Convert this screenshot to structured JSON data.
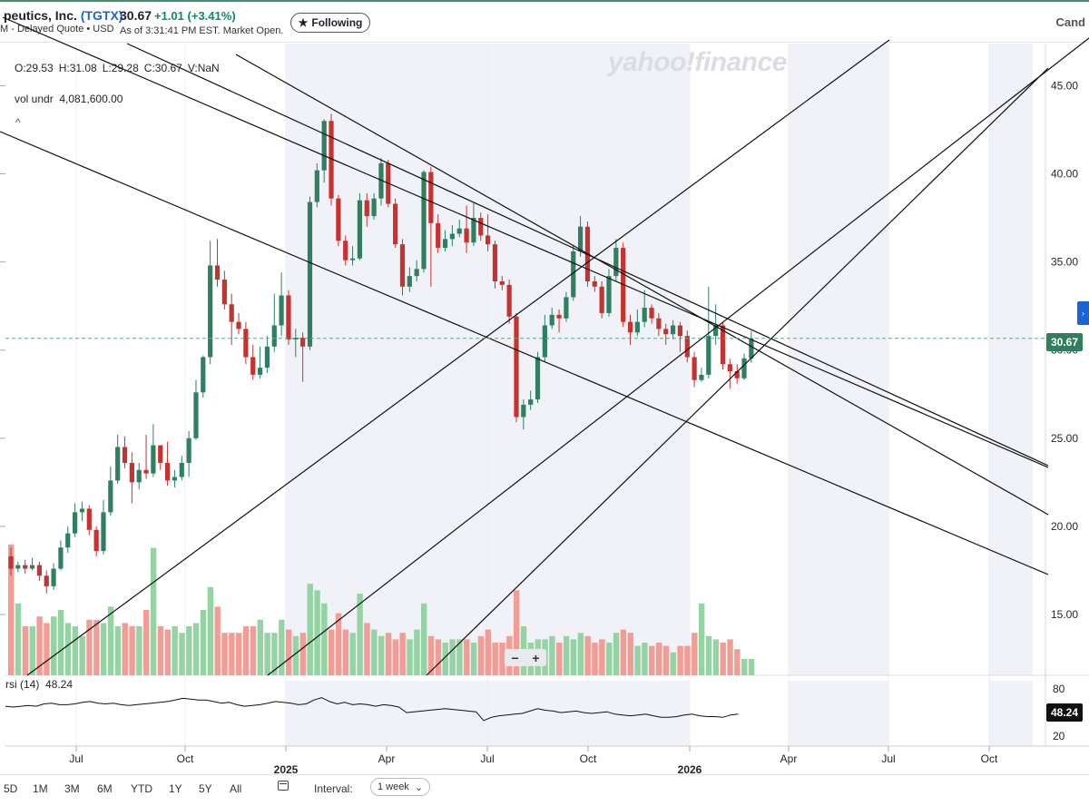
{
  "header": {
    "company": "peutics, Inc.",
    "ticker": "(TGTX)",
    "subline": "M - Delayed Quote • USD",
    "price": "30.67",
    "change": "+1.01",
    "change_pct": "(+3.41%)",
    "as_of": "As of 3:31:41 PM EST. Market Open.",
    "follow_label": "Following",
    "follow_icon": "star-icon",
    "chart_type_label": "Cand"
  },
  "legend": {
    "ohlc": [
      "O:29.53",
      "H:31.08",
      "L:29.28",
      "C:30.67",
      "V:NaN"
    ],
    "vol_label": "vol undr",
    "vol_value": "4,081,600.00",
    "rsi_label": "rsi (14)",
    "rsi_value": "48.24"
  },
  "watermark": "yahoo!finance",
  "zoom": {
    "minus": "−",
    "plus": "+"
  },
  "price_tag": "30.67",
  "rsi_tag": "48.24",
  "side_tab": "›",
  "footer": {
    "ranges": [
      "5D",
      "1M",
      "3M",
      "6M",
      "YTD",
      "1Y",
      "5Y",
      "All"
    ],
    "interval_label": "Interval:",
    "interval_value": "1 week",
    "calendar_icon": "calendar-icon"
  },
  "colors": {
    "up": "#2f7f60",
    "down": "#c7312e",
    "vol_up": "#93d4a2",
    "vol_down": "#f19c95",
    "shade": "#f0f2f8",
    "accent": "#1b62d4"
  },
  "chart_data": {
    "type": "candlestick",
    "title": "",
    "last_price": 30.67,
    "ylim": [
      12,
      48
    ],
    "y_ticks": [
      15,
      20,
      25,
      30,
      35,
      40,
      45
    ],
    "y_tick_labels": [
      "15.00",
      "20.00",
      "25.00",
      "30.00",
      "35.00",
      "40.00",
      "45.00"
    ],
    "x_labels": [
      "Jul",
      "Oct",
      "2025",
      "Apr",
      "Jul",
      "Oct",
      "2026",
      "Apr",
      "Jul",
      "Oct"
    ],
    "rsi_ticks": [
      80,
      20
    ],
    "candles": [
      [
        18.3,
        17.6,
        18.8,
        17.2
      ],
      [
        17.6,
        17.8,
        18.0,
        17.4
      ],
      [
        17.8,
        17.6,
        18.1,
        17.3
      ],
      [
        17.6,
        17.8,
        18.2,
        17.5
      ],
      [
        17.8,
        17.2,
        18.0,
        16.9
      ],
      [
        17.2,
        16.6,
        17.5,
        16.2
      ],
      [
        16.6,
        17.6,
        17.9,
        16.4
      ],
      [
        17.6,
        18.8,
        19.2,
        17.5
      ],
      [
        18.8,
        19.6,
        20.0,
        18.5
      ],
      [
        19.6,
        20.8,
        21.3,
        19.4
      ],
      [
        20.8,
        21.0,
        21.4,
        20.3
      ],
      [
        21.0,
        19.8,
        21.2,
        19.5
      ],
      [
        19.8,
        18.6,
        20.0,
        18.3
      ],
      [
        18.6,
        20.8,
        21.5,
        18.4
      ],
      [
        20.8,
        22.6,
        23.4,
        20.6
      ],
      [
        22.6,
        24.5,
        25.2,
        22.4
      ],
      [
        24.5,
        23.6,
        25.1,
        23.3
      ],
      [
        23.6,
        22.5,
        24.2,
        21.3
      ],
      [
        22.5,
        23.2,
        23.6,
        22.1
      ],
      [
        23.2,
        23.0,
        25.2,
        22.7
      ],
      [
        23.0,
        24.6,
        25.8,
        22.8
      ],
      [
        24.6,
        23.6,
        24.6,
        23.2
      ],
      [
        23.6,
        22.6,
        24.8,
        22.3
      ],
      [
        22.6,
        22.8,
        23.2,
        22.2
      ],
      [
        22.8,
        23.6,
        24.0,
        22.6
      ],
      [
        23.6,
        25.0,
        25.4,
        22.8
      ],
      [
        25.0,
        27.6,
        28.3,
        24.9
      ],
      [
        27.6,
        29.6,
        29.7,
        27.3
      ],
      [
        29.6,
        34.8,
        36.2,
        29.2
      ],
      [
        34.8,
        34.0,
        36.3,
        33.6
      ],
      [
        34.0,
        32.6,
        34.5,
        32.3
      ],
      [
        32.6,
        31.6,
        33.2,
        30.3
      ],
      [
        31.6,
        31.2,
        32.1,
        30.9
      ],
      [
        31.2,
        29.6,
        31.6,
        29.2
      ],
      [
        29.6,
        28.6,
        30.3,
        28.3
      ],
      [
        28.6,
        29.0,
        30.2,
        28.4
      ],
      [
        29.0,
        30.2,
        30.8,
        28.7
      ],
      [
        30.2,
        31.4,
        33.2,
        29.9
      ],
      [
        31.4,
        33.1,
        34.4,
        30.8
      ],
      [
        33.1,
        30.6,
        33.4,
        30.3
      ],
      [
        30.6,
        30.7,
        31.2,
        29.6
      ],
      [
        30.7,
        30.2,
        31.0,
        28.2
      ],
      [
        30.2,
        38.4,
        38.7,
        30.0
      ],
      [
        38.4,
        40.2,
        40.6,
        38.1
      ],
      [
        40.2,
        43.0,
        43.1,
        39.5
      ],
      [
        43.0,
        38.6,
        43.4,
        38.2
      ],
      [
        38.6,
        36.2,
        38.8,
        35.9
      ],
      [
        36.2,
        35.1,
        36.5,
        34.8
      ],
      [
        35.1,
        35.2,
        35.9,
        34.8
      ],
      [
        35.2,
        38.5,
        38.9,
        35.1
      ],
      [
        38.5,
        37.6,
        38.9,
        37.0
      ],
      [
        37.6,
        38.6,
        38.9,
        37.4
      ],
      [
        38.6,
        40.6,
        40.9,
        38.2
      ],
      [
        40.6,
        38.3,
        40.8,
        38.1
      ],
      [
        38.3,
        36.0,
        38.6,
        35.8
      ],
      [
        36.0,
        33.6,
        36.3,
        33.1
      ],
      [
        33.6,
        34.2,
        34.7,
        33.3
      ],
      [
        34.2,
        34.6,
        35.1,
        33.9
      ],
      [
        34.6,
        40.1,
        40.2,
        34.4
      ],
      [
        40.1,
        37.2,
        40.4,
        33.6
      ],
      [
        37.2,
        35.8,
        37.7,
        35.5
      ],
      [
        35.8,
        36.3,
        36.8,
        35.6
      ],
      [
        36.3,
        36.6,
        37.1,
        35.9
      ],
      [
        36.6,
        36.9,
        37.4,
        36.4
      ],
      [
        36.9,
        36.1,
        38.2,
        35.5
      ],
      [
        36.1,
        37.5,
        38.4,
        35.9
      ],
      [
        37.5,
        36.5,
        37.8,
        36.2
      ],
      [
        36.5,
        36.0,
        37.7,
        35.6
      ],
      [
        36.0,
        33.9,
        36.2,
        33.5
      ],
      [
        33.9,
        33.7,
        34.2,
        33.4
      ],
      [
        33.7,
        31.9,
        34.0,
        31.5
      ],
      [
        31.9,
        26.2,
        32.1,
        25.9
      ],
      [
        26.2,
        26.9,
        27.2,
        25.5
      ],
      [
        26.9,
        27.2,
        27.7,
        26.6
      ],
      [
        27.2,
        29.6,
        29.9,
        27.0
      ],
      [
        29.6,
        31.4,
        32.0,
        29.3
      ],
      [
        31.4,
        32.0,
        32.4,
        31.2
      ],
      [
        32.0,
        31.8,
        32.3,
        31.0
      ],
      [
        31.8,
        33.0,
        33.3,
        31.6
      ],
      [
        33.0,
        35.6,
        35.9,
        32.8
      ],
      [
        35.6,
        37.0,
        37.6,
        35.3
      ],
      [
        37.0,
        33.9,
        37.3,
        33.6
      ],
      [
        33.9,
        33.6,
        34.2,
        33.3
      ],
      [
        33.6,
        32.1,
        33.9,
        31.8
      ],
      [
        32.1,
        34.2,
        34.6,
        31.9
      ],
      [
        34.2,
        35.8,
        36.3,
        33.9
      ],
      [
        35.8,
        31.6,
        36.1,
        31.3
      ],
      [
        31.6,
        31.0,
        32.0,
        30.3
      ],
      [
        31.0,
        31.6,
        32.3,
        30.8
      ],
      [
        31.6,
        32.4,
        33.4,
        31.3
      ],
      [
        32.4,
        31.8,
        32.6,
        31.5
      ],
      [
        31.8,
        31.2,
        32.1,
        30.8
      ],
      [
        31.2,
        30.9,
        31.5,
        30.3
      ],
      [
        30.9,
        31.4,
        31.7,
        30.6
      ],
      [
        31.4,
        30.8,
        31.6,
        29.9
      ],
      [
        30.8,
        29.6,
        31.1,
        29.3
      ],
      [
        29.6,
        28.3,
        29.9,
        27.9
      ],
      [
        28.3,
        28.6,
        29.0,
        28.2
      ],
      [
        28.6,
        30.8,
        33.6,
        28.4
      ],
      [
        30.8,
        31.4,
        32.6,
        30.3
      ],
      [
        31.4,
        29.2,
        31.6,
        28.9
      ],
      [
        29.2,
        28.8,
        29.5,
        27.8
      ],
      [
        28.8,
        28.4,
        29.2,
        28.1
      ],
      [
        28.4,
        29.53,
        29.8,
        28.3
      ],
      [
        29.53,
        30.67,
        31.08,
        29.28
      ]
    ],
    "volume": [
      4.0,
      2.2,
      1.5,
      1.5,
      1.8,
      1.6,
      1.8,
      2.0,
      1.6,
      1.5,
      1.2,
      1.7,
      1.7,
      1.6,
      2.1,
      1.5,
      1.6,
      1.5,
      1.5,
      2.0,
      3.9,
      1.5,
      1.4,
      1.5,
      1.3,
      1.5,
      1.6,
      2.0,
      2.7,
      2.1,
      1.3,
      1.3,
      1.3,
      1.5,
      1.5,
      1.7,
      1.3,
      1.3,
      1.7,
      1.4,
      1.2,
      1.3,
      2.8,
      2.6,
      2.2,
      1.4,
      1.9,
      1.4,
      1.3,
      2.5,
      1.6,
      1.4,
      1.2,
      1.3,
      1.1,
      1.3,
      1.1,
      1.4,
      2.2,
      1.2,
      1.1,
      1.0,
      1.1,
      1.1,
      1.1,
      1.0,
      1.2,
      1.4,
      1.0,
      1.0,
      1.2,
      2.6,
      1.5,
      1.0,
      1.1,
      1.1,
      1.2,
      1.0,
      1.2,
      1.1,
      1.3,
      1.2,
      1.0,
      1.1,
      1.0,
      1.3,
      1.4,
      1.3,
      0.9,
      1.0,
      0.9,
      1.0,
      0.9,
      0.7,
      0.9,
      0.9,
      1.3,
      2.2,
      1.2,
      1.1,
      1.0,
      1.1,
      0.8,
      0.5,
      0.5
    ],
    "rsi": [
      58,
      57,
      58,
      59,
      58,
      61,
      62,
      60,
      60,
      61,
      63,
      64,
      62,
      61,
      62,
      60,
      59,
      60,
      61,
      62,
      63,
      64,
      66,
      68,
      67,
      66,
      66,
      64,
      62,
      63,
      60,
      58,
      59,
      60,
      62,
      64,
      63,
      62,
      60,
      61,
      66,
      69,
      64,
      61,
      63,
      60,
      61,
      60,
      58,
      60,
      59,
      57,
      50,
      51,
      52,
      53,
      54,
      55,
      54,
      53,
      52,
      51,
      40,
      44,
      46,
      47,
      48,
      49,
      52,
      55,
      53,
      52,
      50,
      51,
      52,
      50,
      49,
      50,
      51,
      48,
      47,
      46,
      47,
      48,
      46,
      44,
      44,
      45,
      47,
      48,
      46,
      45,
      45,
      44,
      47,
      48
    ]
  }
}
